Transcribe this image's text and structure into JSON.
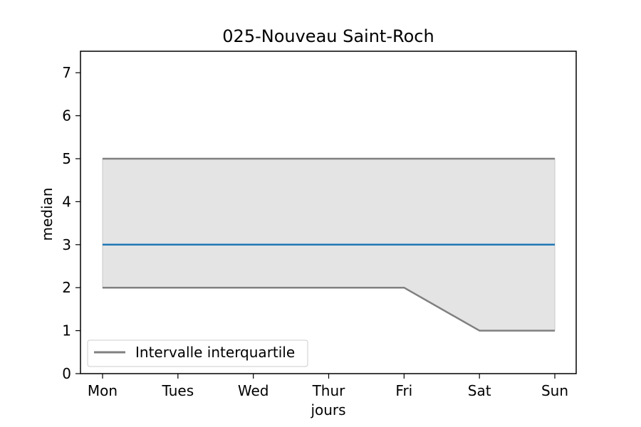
{
  "chart_data": {
    "type": "line",
    "title": "025-Nouveau Saint-Roch",
    "xlabel": "jours",
    "ylabel": "median",
    "categories": [
      "Mon",
      "Tues",
      "Wed",
      "Thur",
      "Fri",
      "Sat",
      "Sun"
    ],
    "ylim": [
      0,
      7.5
    ],
    "yticks": [
      0,
      1,
      2,
      3,
      4,
      5,
      6,
      7
    ],
    "grid": false,
    "legend_position": "lower-left",
    "series": [
      {
        "name": "",
        "role": "median",
        "values": [
          3,
          3,
          3,
          3,
          3,
          3,
          3
        ],
        "color": "#1f77b4"
      },
      {
        "name": "Intervalle interquartile",
        "role": "q3",
        "values": [
          5,
          5,
          5,
          5,
          5,
          5,
          5
        ],
        "color": "#808080"
      },
      {
        "name": "",
        "role": "q1",
        "values": [
          2,
          2,
          2,
          2,
          2,
          1,
          1
        ],
        "color": "#808080"
      }
    ],
    "band": {
      "fill_color": "#e4e4e4",
      "edge_color": "#c8c8c8"
    },
    "legend": [
      {
        "label": "Intervalle interquartile",
        "color": "#808080"
      }
    ]
  }
}
